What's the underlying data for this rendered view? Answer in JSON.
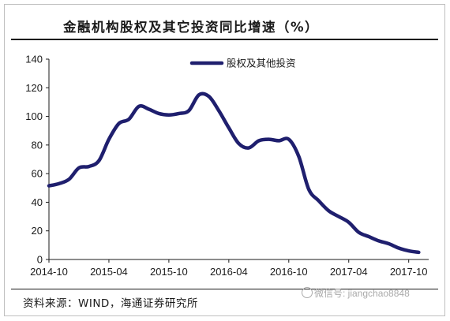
{
  "title": "金融机构股权及其它投资同比增速（%）",
  "source": "资料来源：WIND，海通证券研究所",
  "watermark": "微信号: jiangchao8848",
  "colors": {
    "series": "#1f1f6e",
    "axis": "#1a1a1a"
  },
  "chart_data": {
    "type": "line",
    "title": "金融机构股权及其它投资同比增速（%）",
    "xlabel": "",
    "ylabel": "",
    "ylim": [
      0,
      140
    ],
    "yticks": [
      0,
      20,
      40,
      60,
      80,
      100,
      120,
      140
    ],
    "xlim": [
      "2014-10",
      "2017-12"
    ],
    "xticks": [
      "2014-10",
      "2015-04",
      "2015-10",
      "2016-04",
      "2016-10",
      "2017-04",
      "2017-10"
    ],
    "grid": false,
    "legend_position": "top-center",
    "series": [
      {
        "name": "股权及其他投资",
        "x": [
          "2014-10",
          "2014-11",
          "2014-12",
          "2015-01",
          "2015-02",
          "2015-03",
          "2015-04",
          "2015-05",
          "2015-06",
          "2015-07",
          "2015-08",
          "2015-09",
          "2015-10",
          "2015-11",
          "2015-12",
          "2016-01",
          "2016-02",
          "2016-03",
          "2016-04",
          "2016-05",
          "2016-06",
          "2016-07",
          "2016-08",
          "2016-09",
          "2016-10",
          "2016-11",
          "2016-12",
          "2017-01",
          "2017-02",
          "2017-03",
          "2017-04",
          "2017-05",
          "2017-06",
          "2017-07",
          "2017-08",
          "2017-09",
          "2017-10",
          "2017-11"
        ],
        "values": [
          51.5,
          53,
          56,
          64,
          65,
          69,
          84,
          95,
          98,
          107,
          105,
          102,
          101,
          102,
          104,
          115,
          114,
          104,
          92,
          81,
          78,
          83,
          84,
          83,
          84,
          72,
          49,
          41,
          34,
          30,
          26,
          19,
          16,
          13,
          11,
          8,
          6,
          5
        ]
      }
    ]
  }
}
